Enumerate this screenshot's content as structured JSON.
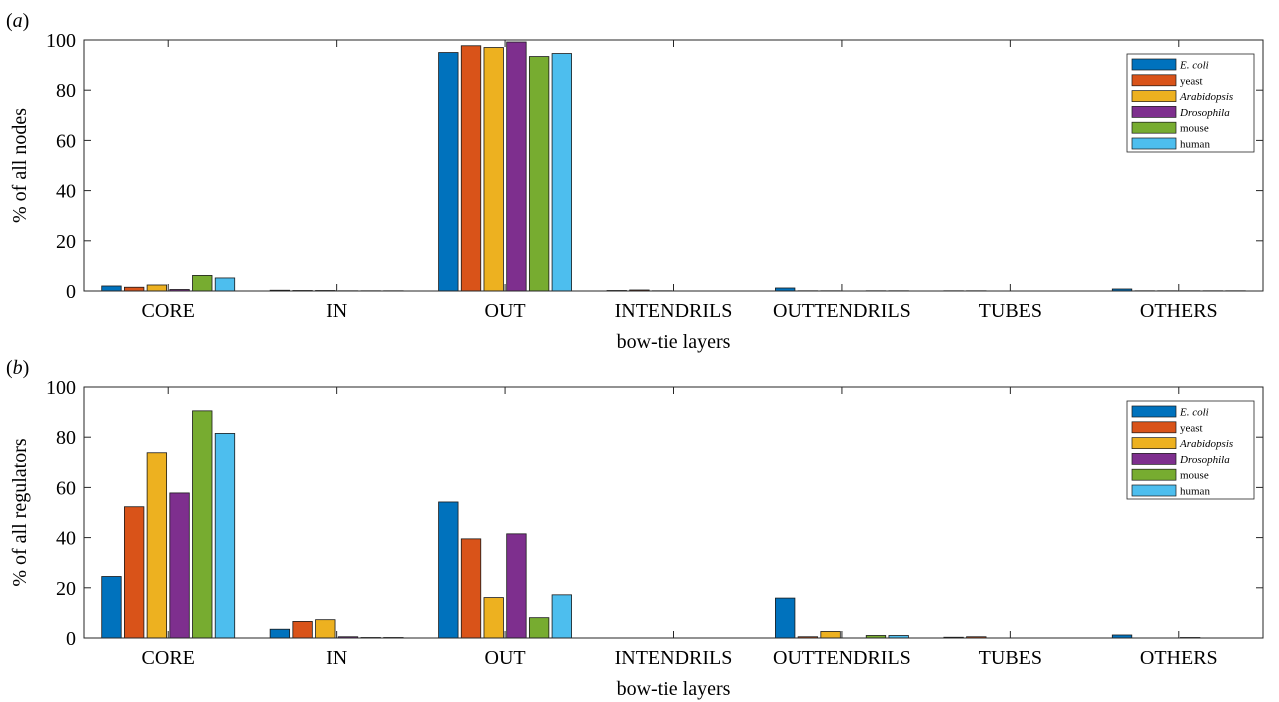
{
  "chart_data": [
    {
      "type": "bar",
      "panel_label": "(a)",
      "categories": [
        "CORE",
        "IN",
        "OUT",
        "INTENDRILS",
        "OUTTENDRILS",
        "TUBES",
        "OTHERS"
      ],
      "series": [
        {
          "name": "E. coli",
          "color": "#0072BD",
          "italic": true,
          "values": [
            2.0,
            0.3,
            95.0,
            0.2,
            1.2,
            0.1,
            0.8
          ]
        },
        {
          "name": "yeast",
          "color": "#D95319",
          "italic": false,
          "values": [
            1.5,
            0.2,
            97.7,
            0.4,
            0.1,
            0.1,
            0.1
          ]
        },
        {
          "name": "Arabidopsis",
          "color": "#EDB120",
          "italic": true,
          "values": [
            2.4,
            0.2,
            97.0,
            0.1,
            0.1,
            0.0,
            0.1
          ]
        },
        {
          "name": "Drosophila",
          "color": "#7E2F8E",
          "italic": true,
          "values": [
            0.6,
            0.1,
            99.2,
            0.0,
            0.0,
            0.0,
            0.1
          ]
        },
        {
          "name": "mouse",
          "color": "#77AC30",
          "italic": false,
          "values": [
            6.2,
            0.1,
            93.4,
            0.0,
            0.1,
            0.0,
            0.1
          ]
        },
        {
          "name": "human",
          "color": "#4DBEEE",
          "italic": false,
          "values": [
            5.2,
            0.1,
            94.6,
            0.0,
            0.1,
            0.0,
            0.1
          ]
        }
      ],
      "xlabel": "bow-tie layers",
      "ylabel": "% of all nodes",
      "ylim": [
        0,
        100
      ],
      "yticks": [
        0,
        20,
        40,
        60,
        80,
        100
      ],
      "legend_position": "top-right",
      "grid": false
    },
    {
      "type": "bar",
      "panel_label": "(b)",
      "categories": [
        "CORE",
        "IN",
        "OUT",
        "INTENDRILS",
        "OUTTENDRILS",
        "TUBES",
        "OTHERS"
      ],
      "series": [
        {
          "name": "E. coli",
          "color": "#0072BD",
          "italic": true,
          "values": [
            24.5,
            3.5,
            54.2,
            0.0,
            15.9,
            0.3,
            1.2
          ]
        },
        {
          "name": "yeast",
          "color": "#D95319",
          "italic": false,
          "values": [
            52.3,
            6.6,
            39.5,
            0.0,
            0.5,
            0.5,
            0.0
          ]
        },
        {
          "name": "Arabidopsis",
          "color": "#EDB120",
          "italic": true,
          "values": [
            73.8,
            7.3,
            16.1,
            0.0,
            2.6,
            0.0,
            0.0
          ]
        },
        {
          "name": "Drosophila",
          "color": "#7E2F8E",
          "italic": true,
          "values": [
            57.8,
            0.5,
            41.5,
            0.0,
            0.0,
            0.0,
            0.2
          ]
        },
        {
          "name": "mouse",
          "color": "#77AC30",
          "italic": false,
          "values": [
            90.5,
            0.2,
            8.1,
            0.0,
            1.0,
            0.0,
            0.0
          ]
        },
        {
          "name": "human",
          "color": "#4DBEEE",
          "italic": false,
          "values": [
            81.5,
            0.2,
            17.2,
            0.0,
            1.0,
            0.0,
            0.0
          ]
        }
      ],
      "xlabel": "bow-tie layers",
      "ylabel": "% of all regulators",
      "ylim": [
        0,
        100
      ],
      "yticks": [
        0,
        20,
        40,
        60,
        80,
        100
      ],
      "legend_position": "top-right",
      "grid": false
    }
  ]
}
